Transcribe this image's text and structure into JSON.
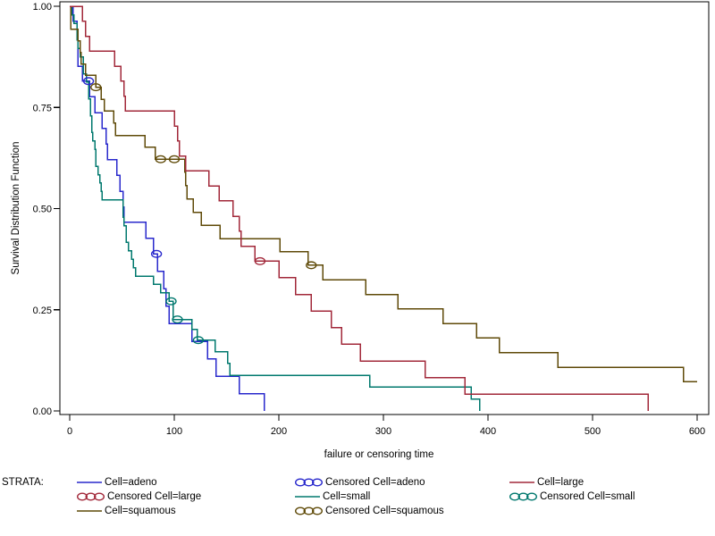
{
  "figure": {
    "background": "#ffffff",
    "strata_label": "STRATA:"
  },
  "chart_data": {
    "type": "line",
    "subtype": "kaplan-meier-step-survival",
    "title": "",
    "xlabel": "failure or censoring time",
    "ylabel": "Survival Distribution Function",
    "xlim": [
      0,
      600
    ],
    "ylim": [
      0,
      1
    ],
    "x_ticks": [
      0,
      100,
      200,
      300,
      400,
      500,
      600
    ],
    "y_ticks": [
      "1.00",
      "0.75",
      "0.50",
      "0.25",
      "0.00"
    ],
    "y_tick_values": [
      1.0,
      0.75,
      0.5,
      0.25,
      0.0
    ],
    "grid": false,
    "legend_position": "bottom",
    "axis_color": "#000000",
    "series": [
      {
        "id": "adeno",
        "name": "Cell=adeno",
        "color": "#2828cc",
        "points": [
          [
            0,
            1
          ],
          [
            3,
            0.963
          ],
          [
            7,
            0.926
          ],
          [
            8,
            0.852
          ],
          [
            12,
            0.815
          ],
          [
            19,
            0.776
          ],
          [
            24,
            0.737
          ],
          [
            31,
            0.698
          ],
          [
            35,
            0.66
          ],
          [
            36,
            0.621
          ],
          [
            45,
            0.582
          ],
          [
            48,
            0.543
          ],
          [
            51,
            0.504
          ],
          [
            52,
            0.466
          ],
          [
            73,
            0.427
          ],
          [
            80,
            0.388
          ],
          [
            84,
            0.345
          ],
          [
            90,
            0.302
          ],
          [
            92,
            0.259
          ],
          [
            95,
            0.216
          ],
          [
            117,
            0.172
          ],
          [
            132,
            0.129
          ],
          [
            140,
            0.086
          ],
          [
            162,
            0.043
          ],
          [
            186,
            0
          ]
        ],
        "censored": [
          [
            18,
            0.815
          ],
          [
            83,
            0.388
          ]
        ]
      },
      {
        "id": "small",
        "name": "Cell=small",
        "color": "#00786e",
        "points": [
          [
            0,
            1
          ],
          [
            2,
            0.979
          ],
          [
            4,
            0.958
          ],
          [
            7,
            0.917
          ],
          [
            8,
            0.896
          ],
          [
            10,
            0.875
          ],
          [
            13,
            0.833
          ],
          [
            16,
            0.813
          ],
          [
            18,
            0.771
          ],
          [
            20,
            0.729
          ],
          [
            21,
            0.688
          ],
          [
            22,
            0.667
          ],
          [
            24,
            0.646
          ],
          [
            25,
            0.604
          ],
          [
            27,
            0.583
          ],
          [
            29,
            0.563
          ],
          [
            30,
            0.542
          ],
          [
            31,
            0.521
          ],
          [
            51,
            0.479
          ],
          [
            52,
            0.458
          ],
          [
            54,
            0.417
          ],
          [
            56,
            0.396
          ],
          [
            59,
            0.375
          ],
          [
            61,
            0.354
          ],
          [
            63,
            0.333
          ],
          [
            80,
            0.313
          ],
          [
            87,
            0.292
          ],
          [
            95,
            0.271
          ],
          [
            99,
            0.226
          ],
          [
            117,
            0.201
          ],
          [
            122,
            0.175
          ],
          [
            139,
            0.146
          ],
          [
            151,
            0.117
          ],
          [
            153,
            0.088
          ],
          [
            287,
            0.059
          ],
          [
            384,
            0.029
          ],
          [
            392,
            0
          ]
        ],
        "censored": [
          [
            97,
            0.271
          ],
          [
            103,
            0.226
          ],
          [
            123,
            0.175
          ]
        ]
      },
      {
        "id": "squamous",
        "name": "Cell=squamous",
        "color": "#5f4a08",
        "points": [
          [
            0,
            1
          ],
          [
            1,
            0.943
          ],
          [
            8,
            0.914
          ],
          [
            10,
            0.886
          ],
          [
            11,
            0.857
          ],
          [
            15,
            0.829
          ],
          [
            25,
            0.8
          ],
          [
            30,
            0.77
          ],
          [
            33,
            0.741
          ],
          [
            42,
            0.711
          ],
          [
            44,
            0.681
          ],
          [
            72,
            0.652
          ],
          [
            82,
            0.622
          ],
          [
            110,
            0.59
          ],
          [
            111,
            0.557
          ],
          [
            112,
            0.524
          ],
          [
            118,
            0.491
          ],
          [
            126,
            0.459
          ],
          [
            144,
            0.426
          ],
          [
            201,
            0.393
          ],
          [
            228,
            0.36
          ],
          [
            242,
            0.324
          ],
          [
            283,
            0.288
          ],
          [
            314,
            0.252
          ],
          [
            357,
            0.216
          ],
          [
            389,
            0.18
          ],
          [
            411,
            0.144
          ],
          [
            467,
            0.108
          ],
          [
            587,
            0.072
          ],
          [
            600,
            0.072
          ]
        ],
        "censored": [
          [
            25,
            0.8
          ],
          [
            87,
            0.622
          ],
          [
            100,
            0.622
          ],
          [
            231,
            0.36
          ]
        ]
      },
      {
        "id": "large",
        "name": "Cell=large",
        "color": "#a2283a",
        "points": [
          [
            0,
            1
          ],
          [
            12,
            0.963
          ],
          [
            15,
            0.926
          ],
          [
            19,
            0.889
          ],
          [
            43,
            0.852
          ],
          [
            49,
            0.815
          ],
          [
            52,
            0.778
          ],
          [
            53,
            0.741
          ],
          [
            100,
            0.704
          ],
          [
            103,
            0.667
          ],
          [
            105,
            0.63
          ],
          [
            111,
            0.593
          ],
          [
            133,
            0.556
          ],
          [
            143,
            0.519
          ],
          [
            156,
            0.481
          ],
          [
            162,
            0.444
          ],
          [
            164,
            0.407
          ],
          [
            177,
            0.37
          ],
          [
            200,
            0.329
          ],
          [
            216,
            0.288
          ],
          [
            231,
            0.247
          ],
          [
            250,
            0.206
          ],
          [
            260,
            0.165
          ],
          [
            278,
            0.123
          ],
          [
            340,
            0.082
          ],
          [
            378,
            0.041
          ],
          [
            553,
            0
          ]
        ],
        "censored": [
          [
            182,
            0.37
          ]
        ]
      }
    ],
    "legend": {
      "strata_label": "STRATA:",
      "columns": [
        {
          "items": [
            {
              "marker": "line",
              "series": "adeno",
              "label": "Cell=adeno"
            },
            {
              "marker": "censor",
              "series": "large",
              "label": "Censored Cell=large"
            },
            {
              "marker": "line",
              "series": "squamous",
              "label": "Cell=squamous"
            }
          ]
        },
        {
          "items": [
            {
              "marker": "censor",
              "series": "adeno",
              "label": "Censored Cell=adeno"
            },
            {
              "marker": "line",
              "series": "small",
              "label": "Cell=small"
            },
            {
              "marker": "censor",
              "series": "squamous",
              "label": "Censored Cell=squamous"
            }
          ]
        },
        {
          "items": [
            {
              "marker": "line",
              "series": "large",
              "label": "Cell=large"
            },
            {
              "marker": "censor",
              "series": "small",
              "label": "Censored Cell=small"
            }
          ]
        }
      ]
    }
  }
}
